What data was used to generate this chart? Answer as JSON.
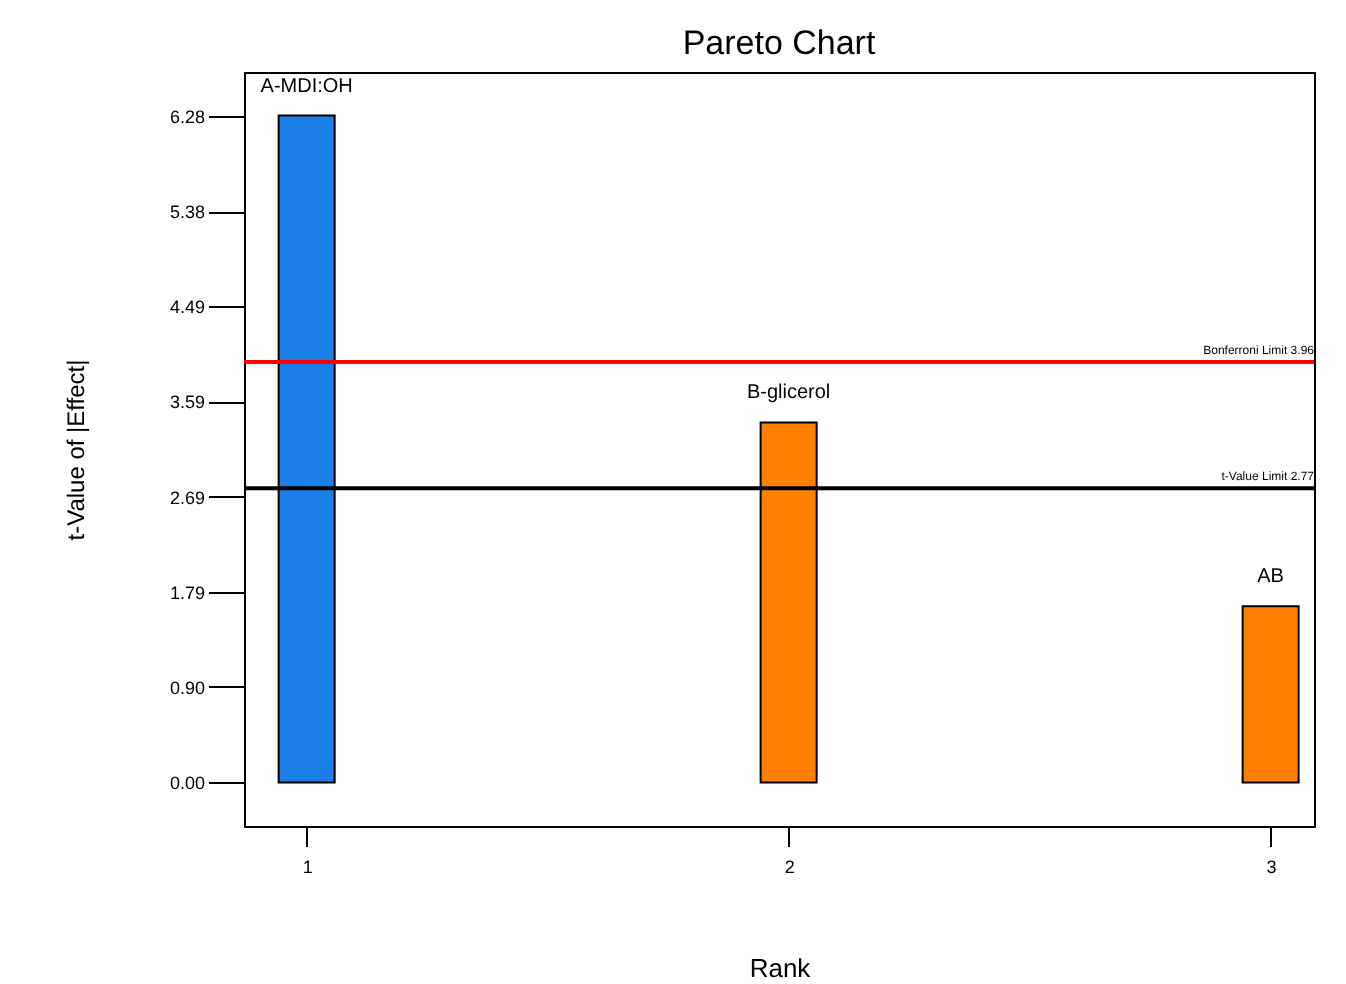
{
  "chart_data": {
    "type": "bar",
    "title": "Pareto Chart",
    "xlabel": "Rank",
    "ylabel": "t-Value of |Effect|",
    "x": [
      1,
      2,
      3
    ],
    "values": [
      6.28,
      3.39,
      1.66
    ],
    "colors": [
      "#1a7fe8",
      "#ff8000",
      "#ff8000"
    ],
    "xlim": [
      0.87,
      3.09
    ],
    "xticks": [
      1,
      2,
      3
    ],
    "ylim": [
      -0.41,
      6.69
    ],
    "yticks": [
      {
        "value": 0,
        "label": "0.00"
      },
      {
        "value": 0.9,
        "label": "0.90"
      },
      {
        "value": 1.79,
        "label": "1.79"
      },
      {
        "value": 2.69,
        "label": "2.69"
      },
      {
        "value": 3.59,
        "label": "3.59"
      },
      {
        "value": 4.49,
        "label": "4.49"
      },
      {
        "value": 5.38,
        "label": "5.38"
      },
      {
        "value": 6.28,
        "label": "6.28"
      }
    ],
    "ref_lines": [
      {
        "axis": "y",
        "value": 3.96,
        "label": "Bonferroni Limit 3.96",
        "color": "#ff0000"
      },
      {
        "axis": "y",
        "value": 2.77,
        "label": "t-Value Limit 2.77",
        "color": "#000000"
      }
    ],
    "annotations": [
      {
        "text": "A-MDI:OH",
        "x": 1,
        "y": 6.28
      },
      {
        "text": "B-glicerol",
        "x": 2,
        "y": 3.39
      },
      {
        "text": "AB",
        "x": 3,
        "y": 1.66
      }
    ]
  }
}
